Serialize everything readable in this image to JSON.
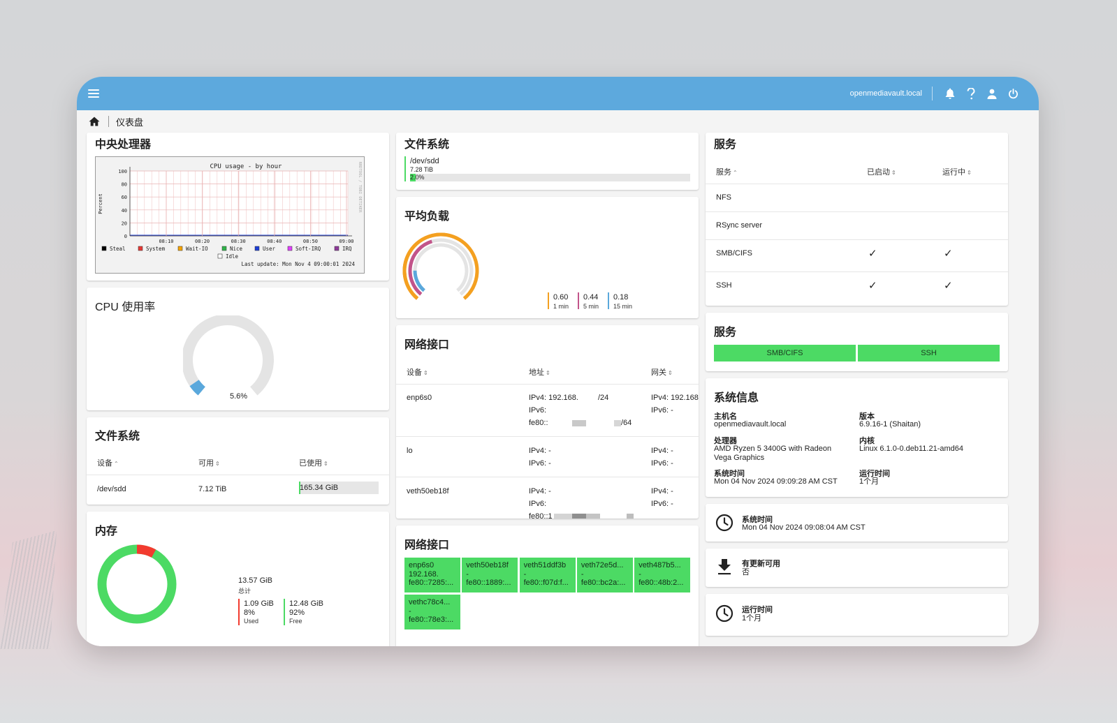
{
  "topbar": {
    "hostname": "openmediavault.local",
    "icons": [
      "menu-icon",
      "bell-icon",
      "help-icon",
      "user-icon",
      "power-icon"
    ]
  },
  "breadcrumb": {
    "label": "仪表盘"
  },
  "cpu_chart_card": {
    "title": "中央处理器",
    "chart_data": {
      "type": "line",
      "title": "CPU usage - by hour",
      "ylabel": "Percent",
      "xlabel": "",
      "ylim": [
        0,
        100
      ],
      "yticks": [
        "100",
        "80",
        "60",
        "40",
        "20",
        "0"
      ],
      "xticks": [
        "08:10",
        "08:20",
        "08:30",
        "08:40",
        "08:50",
        "09:00"
      ],
      "legend": [
        "Steal",
        "System",
        "Wait-IO",
        "Nice",
        "User",
        "Soft-IRQ",
        "IRQ",
        "Idle"
      ],
      "legend_colors": [
        "#000000",
        "#e53935",
        "#f4a300",
        "#2fb34a",
        "#1d3fd6",
        "#e040fb",
        "#8e3b9a",
        "#ffffff"
      ],
      "side_text": "RRDTOOL / TOBI OETIKER",
      "footer": "Last update: Mon Nov  4 09:00:01 2024",
      "grid": true
    }
  },
  "cpu_usage_card": {
    "title": "CPU 使用率",
    "value_label": "5.6%",
    "value_fraction": 0.056
  },
  "fs_table_card": {
    "title": "文件系统",
    "columns": [
      "设备",
      "可用",
      "已使用"
    ],
    "rows": [
      {
        "device": "/dev/sdd",
        "available": "7.12 TiB",
        "used": "165.34 GiB",
        "used_fraction": 0.02
      }
    ]
  },
  "memory_card": {
    "title": "内存",
    "total_value": "13.57 GiB",
    "total_label": "总计",
    "used_value": "1.09 GiB",
    "used_percent": "8%",
    "used_label": "Used",
    "free_value": "12.48 GiB",
    "free_percent": "92%",
    "free_label": "Free",
    "used_fraction": 0.08,
    "colors": {
      "used": "#f23b2f",
      "free": "#4cda64"
    }
  },
  "fs_summary_card": {
    "title": "文件系统",
    "device": "/dev/sdd",
    "size": "7.28 TiB",
    "percent_label": "2.0%",
    "used_fraction": 0.02
  },
  "load_card": {
    "title": "平均负载",
    "loads": [
      {
        "value": "0.60",
        "label": "1 min",
        "color": "#f4a020",
        "fraction": 0.6
      },
      {
        "value": "0.44",
        "label": "5 min",
        "color": "#c2548a",
        "fraction": 0.44
      },
      {
        "value": "0.18",
        "label": "15 min",
        "color": "#5aa8dc",
        "fraction": 0.18
      }
    ]
  },
  "net_table_card": {
    "title": "网络接口",
    "columns": [
      "设备",
      "地址",
      "网关"
    ],
    "rows": [
      {
        "device": "enp6s0",
        "addr1": "IPv4: 192.168.",
        "addr1b": "/24",
        "addr2": "IPv6:",
        "addr3": "fe80::",
        "addr3b": "/64",
        "gw1": "IPv4: 192.168",
        "gw2": "IPv6: -"
      },
      {
        "device": "lo",
        "addr1": "IPv4: -",
        "addr1b": "",
        "addr2": "IPv6: -",
        "addr3": "",
        "addr3b": "",
        "gw1": "IPv4: -",
        "gw2": "IPv6: -"
      },
      {
        "device": "veth50eb18f",
        "addr1": "IPv4: -",
        "addr1b": "",
        "addr2": "IPv6:",
        "addr3": "fe80::1",
        "addr3b": "",
        "gw1": "IPv4: -",
        "gw2": "IPv6: -"
      }
    ]
  },
  "net_tiles_card": {
    "title": "网络接口",
    "tiles": [
      {
        "name": "enp6s0",
        "line2": "192.168.",
        "line3": "fe80::7285:..."
      },
      {
        "name": "veth50eb18f",
        "line2": "-",
        "line3": "fe80::1889:..."
      },
      {
        "name": "veth51ddf3b",
        "line2": "-",
        "line3": "fe80::f07d:f..."
      },
      {
        "name": "veth72e5d...",
        "line2": "-",
        "line3": "fe80::bc2a:..."
      },
      {
        "name": "veth487b5...",
        "line2": "-",
        "line3": "fe80::48b:2..."
      },
      {
        "name": "vethc78c4...",
        "line2": "-",
        "line3": "fe80::78e3:..."
      }
    ],
    "tile_color": "#4cda64"
  },
  "services_table_card": {
    "title": "服务",
    "columns": [
      "服务",
      "已启动",
      "运行中"
    ],
    "rows": [
      {
        "name": "NFS",
        "enabled": "",
        "running": ""
      },
      {
        "name": "RSync server",
        "enabled": "",
        "running": ""
      },
      {
        "name": "SMB/CIFS",
        "enabled": "✓",
        "running": "✓"
      },
      {
        "name": "SSH",
        "enabled": "✓",
        "running": "✓"
      }
    ]
  },
  "services_status_card": {
    "title": "服务",
    "buttons": [
      "SMB/CIFS",
      "SSH"
    ],
    "color": "#4cda64"
  },
  "sysinfo_card": {
    "title": "系统信息",
    "hostname_label": "主机名",
    "hostname": "openmediavault.local",
    "version_label": "版本",
    "version": "6.9.16-1 (Shaitan)",
    "cpu_label": "处理器",
    "cpu_line1": "AMD Ryzen 5 3400G with Radeon",
    "cpu_line2": "Vega Graphics",
    "kernel_label": "内核",
    "kernel": "Linux 6.1.0-0.deb11.21-amd64",
    "time_label": "系统时间",
    "time": "Mon 04 Nov 2024 09:09:28 AM CST",
    "uptime_label": "运行时间",
    "uptime": "1个月"
  },
  "widget_time": {
    "label": "系统时间",
    "value": "Mon 04 Nov 2024 09:08:04 AM CST"
  },
  "widget_updates": {
    "label": "有更新可用",
    "value": "否"
  },
  "widget_uptime": {
    "label": "运行时间",
    "value": "1个月"
  }
}
